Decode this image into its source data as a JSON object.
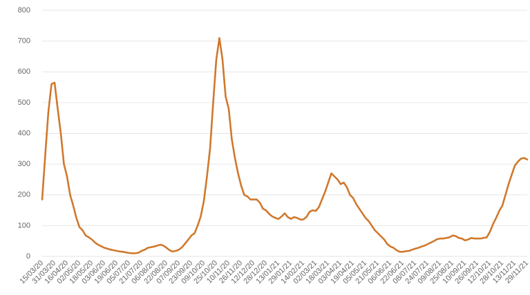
{
  "chart_data": {
    "type": "line",
    "categories": [
      "15/03/20",
      null,
      null,
      null,
      "31/03/20",
      null,
      null,
      null,
      "16/04/20",
      null,
      null,
      null,
      "02/05/20",
      null,
      null,
      null,
      "18/05/20",
      null,
      null,
      null,
      "03/06/20",
      null,
      null,
      null,
      "19/06/20",
      null,
      null,
      null,
      "05/07/20",
      null,
      null,
      null,
      "21/07/20",
      null,
      null,
      null,
      "06/08/20",
      null,
      null,
      null,
      "22/08/20",
      null,
      null,
      null,
      "07/09/20",
      null,
      null,
      null,
      "23/09/20",
      null,
      null,
      null,
      "09/10/20",
      null,
      null,
      null,
      "25/10/20",
      null,
      null,
      null,
      "10/11/20",
      null,
      null,
      null,
      "26/11/20",
      null,
      null,
      null,
      "12/12/20",
      null,
      null,
      null,
      "28/12/20",
      null,
      null,
      null,
      "13/01/21",
      null,
      null,
      null,
      "29/01/21",
      null,
      null,
      null,
      "14/02/21",
      null,
      null,
      null,
      "02/03/21",
      null,
      null,
      null,
      "18/03/21",
      null,
      null,
      null,
      "03/04/21",
      null,
      null,
      null,
      "19/04/21",
      null,
      null,
      null,
      "05/05/21",
      null,
      null,
      null,
      "21/05/21",
      null,
      null,
      null,
      "06/06/21",
      null,
      null,
      null,
      "22/06/21",
      null,
      null,
      null,
      "08/07/21",
      null,
      null,
      null,
      "24/07/21",
      null,
      null,
      null,
      "09/08/21",
      null,
      null,
      null,
      "25/08/21",
      null,
      null,
      null,
      "10/09/21",
      null,
      null,
      null,
      "26/09/21",
      null,
      null,
      null,
      "12/10/21",
      null,
      null,
      null,
      "28/10/21",
      null,
      null,
      null,
      "13/11/21",
      null,
      null,
      null,
      "29/11/21"
    ],
    "values": [
      185,
      330,
      470,
      560,
      565,
      480,
      400,
      300,
      260,
      200,
      165,
      125,
      95,
      85,
      68,
      62,
      55,
      45,
      38,
      33,
      28,
      25,
      22,
      20,
      18,
      16,
      15,
      13,
      11,
      10,
      10,
      12,
      18,
      22,
      28,
      30,
      32,
      35,
      38,
      35,
      28,
      20,
      16,
      18,
      22,
      30,
      42,
      55,
      68,
      75,
      100,
      130,
      180,
      260,
      350,
      500,
      640,
      710,
      640,
      520,
      480,
      380,
      320,
      270,
      230,
      200,
      195,
      185,
      185,
      185,
      175,
      155,
      150,
      138,
      130,
      125,
      122,
      130,
      140,
      128,
      122,
      128,
      125,
      120,
      120,
      128,
      145,
      150,
      148,
      160,
      185,
      210,
      240,
      270,
      260,
      250,
      235,
      240,
      225,
      200,
      190,
      170,
      155,
      140,
      125,
      115,
      100,
      85,
      75,
      65,
      55,
      40,
      32,
      28,
      20,
      15,
      15,
      17,
      18,
      22,
      25,
      28,
      32,
      35,
      40,
      45,
      50,
      56,
      58,
      58,
      60,
      62,
      68,
      66,
      60,
      58,
      52,
      55,
      60,
      58,
      58,
      58,
      60,
      62,
      80,
      105,
      125,
      148,
      165,
      200,
      235,
      265,
      295,
      308,
      318,
      320,
      315
    ],
    "color": "#d0782c",
    "ylim": [
      0,
      800
    ],
    "yticks": [
      0,
      100,
      200,
      300,
      400,
      500,
      600,
      700,
      800
    ],
    "grid": true
  }
}
